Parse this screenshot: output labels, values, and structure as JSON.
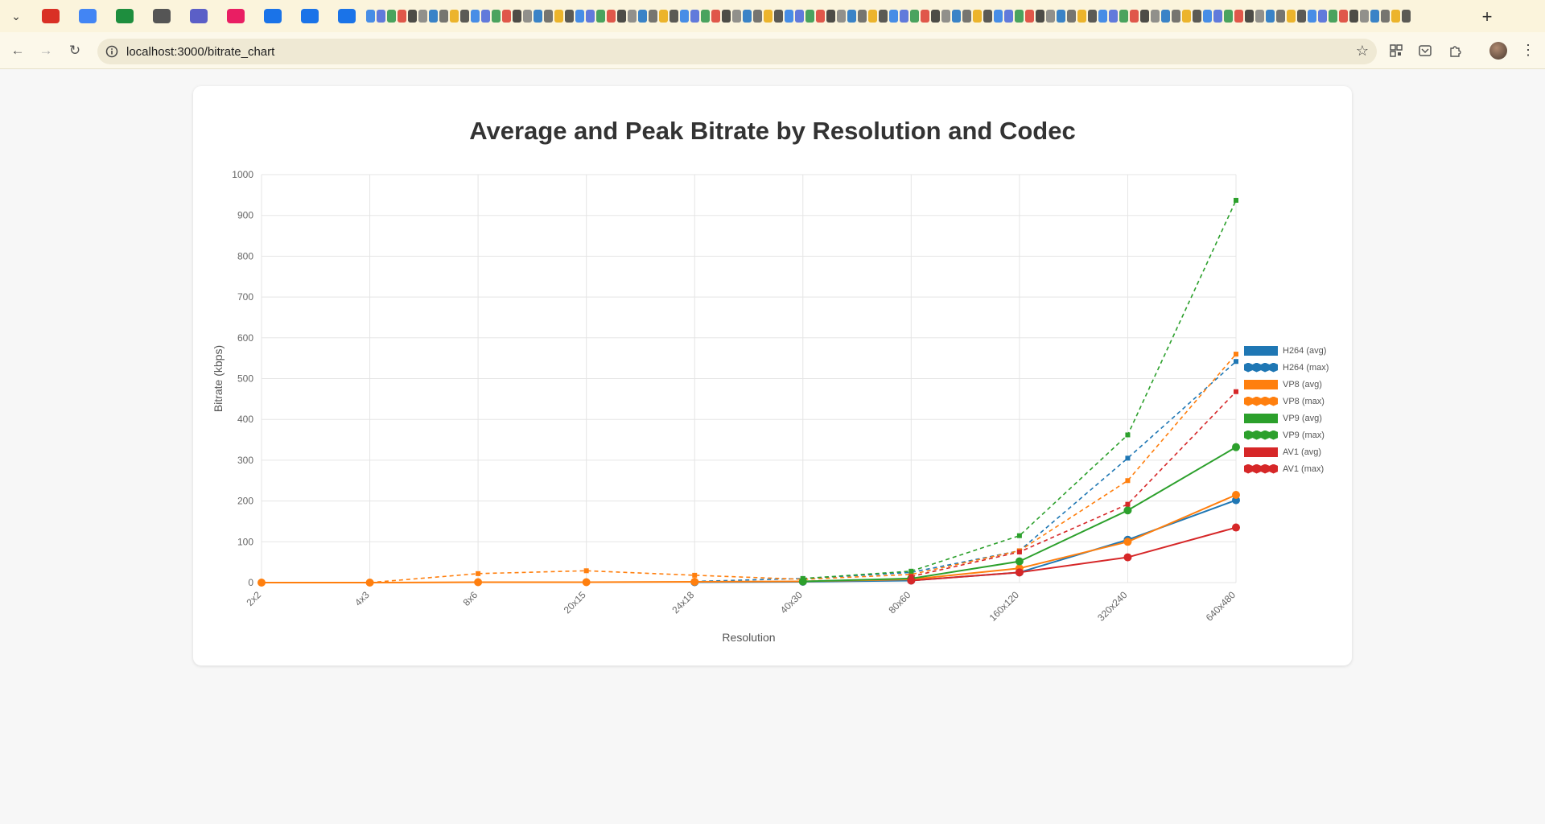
{
  "browser": {
    "url": "localhost:3000/bitrate_chart",
    "tab_icon_colors": [
      "#d93025",
      "#4285f4",
      "#1e8e3e",
      "#555555",
      "#5b5fc7",
      "#e91e63",
      "#1a73e8",
      "#1a73e8",
      "#1a73e8"
    ],
    "icons": {
      "back": "arrow-left-icon",
      "forward": "arrow-right-icon",
      "reload": "reload-icon",
      "info": "info-icon",
      "bookmark": "star-icon",
      "extensions": "puzzle-icon",
      "menu": "kebab-menu-icon",
      "new_tab": "plus-icon",
      "tab_list": "chevron-down-icon"
    }
  },
  "chart_data": {
    "type": "line",
    "title": "Average and Peak Bitrate by Resolution and Codec",
    "xlabel": "Resolution",
    "ylabel": "Bitrate (kbps)",
    "ylim": [
      0,
      1000
    ],
    "yticks": [
      0,
      100,
      200,
      300,
      400,
      500,
      600,
      700,
      800,
      900,
      1000
    ],
    "grid": true,
    "legend_position": "right",
    "categories": [
      "2x2",
      "4x3",
      "8x6",
      "20x15",
      "24x18",
      "40x30",
      "80x60",
      "160x120",
      "320x240",
      "640x480"
    ],
    "series": [
      {
        "name": "H264 (avg)",
        "color": "#1f77b4",
        "style": "solid",
        "values": [
          null,
          null,
          null,
          null,
          1,
          2,
          5,
          25,
          105,
          202
        ]
      },
      {
        "name": "H264 (max)",
        "color": "#1f77b4",
        "style": "dashed",
        "values": [
          null,
          null,
          null,
          null,
          3,
          10,
          25,
          78,
          305,
          542
        ]
      },
      {
        "name": "VP8 (avg)",
        "color": "#ff7f0e",
        "style": "solid",
        "values": [
          0,
          0,
          1,
          1,
          2,
          3,
          8,
          35,
          100,
          215
        ]
      },
      {
        "name": "VP8 (max)",
        "color": "#ff7f0e",
        "style": "dashed",
        "values": [
          0,
          0,
          22,
          29,
          18,
          8,
          20,
          78,
          250,
          560
        ]
      },
      {
        "name": "VP9 (avg)",
        "color": "#2ca02c",
        "style": "solid",
        "values": [
          null,
          null,
          null,
          null,
          null,
          3,
          10,
          52,
          177,
          332
        ]
      },
      {
        "name": "VP9 (max)",
        "color": "#2ca02c",
        "style": "dashed",
        "values": [
          null,
          null,
          null,
          null,
          null,
          10,
          28,
          115,
          362,
          937
        ]
      },
      {
        "name": "AV1 (avg)",
        "color": "#d62728",
        "style": "solid",
        "values": [
          null,
          null,
          null,
          null,
          null,
          null,
          5,
          25,
          62,
          135
        ]
      },
      {
        "name": "AV1 (max)",
        "color": "#d62728",
        "style": "dashed",
        "values": [
          null,
          null,
          null,
          null,
          null,
          null,
          15,
          75,
          192,
          468
        ]
      }
    ]
  }
}
